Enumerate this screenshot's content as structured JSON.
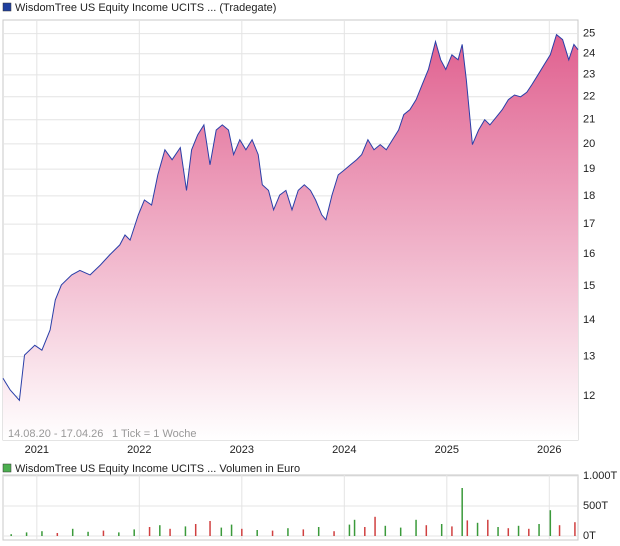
{
  "chart_data": [
    {
      "type": "area",
      "title": "WisdomTree US Equity Income UCITS ... (Tradegate)",
      "annotations": [
        "14.08.20 - 17.04.26",
        "1 Tick = 1 Woche"
      ],
      "legend_color": "#1f3f9f",
      "log_y": true,
      "grid": true,
      "xlim": [
        2020.67,
        2026.28
      ],
      "xticks": [
        2021,
        2022,
        2023,
        2024,
        2025,
        2026
      ],
      "ylim": [
        10.98,
        25.7
      ],
      "yticks": [
        12,
        13,
        14,
        15,
        16,
        17,
        18,
        19,
        20,
        21,
        22,
        23,
        24,
        25
      ],
      "series": [
        {
          "color": "#2a3fa8",
          "fill": "#e0608f",
          "x": [
            2020.67,
            2020.74,
            2020.83,
            2020.88,
            2020.98,
            2021.05,
            2021.13,
            2021.18,
            2021.24,
            2021.34,
            2021.42,
            2021.52,
            2021.62,
            2021.71,
            2021.81,
            2021.86,
            2021.91,
            2021.99,
            2022.05,
            2022.12,
            2022.18,
            2022.25,
            2022.32,
            2022.4,
            2022.46,
            2022.51,
            2022.57,
            2022.63,
            2022.69,
            2022.75,
            2022.81,
            2022.87,
            2022.92,
            2022.98,
            2023.04,
            2023.1,
            2023.16,
            2023.2,
            2023.26,
            2023.31,
            2023.37,
            2023.43,
            2023.49,
            2023.55,
            2023.61,
            2023.67,
            2023.72,
            2023.78,
            2023.82,
            2023.88,
            2023.94,
            2024.0,
            2024.06,
            2024.12,
            2024.17,
            2024.23,
            2024.29,
            2024.35,
            2024.41,
            2024.47,
            2024.53,
            2024.58,
            2024.64,
            2024.7,
            2024.76,
            2024.82,
            2024.89,
            2024.94,
            2024.99,
            2025.05,
            2025.11,
            2025.15,
            2025.19,
            2025.25,
            2025.31,
            2025.37,
            2025.42,
            2025.48,
            2025.54,
            2025.6,
            2025.66,
            2025.72,
            2025.78,
            2025.83,
            2025.89,
            2025.95,
            2026.01,
            2026.07,
            2026.13,
            2026.19,
            2026.24,
            2026.28
          ],
          "values": [
            12.44,
            12.15,
            11.9,
            13.04,
            13.3,
            13.17,
            13.72,
            14.58,
            15.03,
            15.34,
            15.48,
            15.34,
            15.65,
            15.97,
            16.3,
            16.63,
            16.46,
            17.32,
            17.85,
            17.67,
            18.78,
            19.76,
            19.37,
            19.85,
            18.2,
            19.76,
            20.37,
            20.78,
            19.17,
            20.57,
            20.78,
            20.57,
            19.57,
            20.17,
            19.76,
            20.17,
            19.57,
            18.41,
            18.2,
            17.5,
            18.03,
            18.2,
            17.5,
            18.2,
            18.41,
            18.2,
            17.85,
            17.32,
            17.15,
            18.03,
            18.78,
            18.97,
            19.17,
            19.37,
            19.57,
            20.17,
            19.76,
            19.97,
            19.76,
            20.17,
            20.57,
            21.22,
            21.43,
            21.87,
            22.55,
            23.25,
            24.6,
            23.71,
            23.25,
            23.95,
            23.71,
            24.46,
            22.78,
            19.97,
            20.57,
            21.0,
            20.78,
            21.1,
            21.43,
            21.87,
            22.08,
            22.0,
            22.2,
            22.55,
            23.0,
            23.48,
            23.95,
            24.95,
            24.7,
            23.71,
            24.46,
            24.2
          ]
        }
      ]
    },
    {
      "type": "bar",
      "title": "WisdomTree US Equity Income UCITS ... Volumen in Euro",
      "legend_color": "#4caf50",
      "grid": true,
      "xlim": [
        2020.67,
        2026.28
      ],
      "xticks": [
        2021,
        2022,
        2023,
        2024,
        2025,
        2026
      ],
      "ylim": [
        0,
        1000
      ],
      "yticks": [
        {
          "value": 0,
          "label": "0T"
        },
        {
          "value": 500,
          "label": "500T"
        },
        {
          "value": 1000,
          "label": "1.000T"
        }
      ],
      "x": [
        2020.75,
        2020.9,
        2021.05,
        2021.2,
        2021.35,
        2021.5,
        2021.65,
        2021.8,
        2021.95,
        2022.1,
        2022.2,
        2022.3,
        2022.45,
        2022.55,
        2022.69,
        2022.8,
        2022.9,
        2023.0,
        2023.15,
        2023.3,
        2023.45,
        2023.6,
        2023.75,
        2023.9,
        2024.05,
        2024.1,
        2024.2,
        2024.3,
        2024.4,
        2024.55,
        2024.7,
        2024.8,
        2024.95,
        2025.05,
        2025.15,
        2025.2,
        2025.3,
        2025.4,
        2025.5,
        2025.6,
        2025.7,
        2025.8,
        2025.9,
        2026.01,
        2026.1,
        2026.25
      ],
      "values": [
        30,
        60,
        80,
        50,
        120,
        70,
        90,
        60,
        110,
        150,
        180,
        120,
        160,
        200,
        250,
        140,
        190,
        120,
        100,
        90,
        130,
        110,
        150,
        80,
        190,
        270,
        150,
        320,
        170,
        140,
        270,
        180,
        200,
        160,
        800,
        260,
        220,
        270,
        150,
        130,
        170,
        120,
        200,
        430,
        180,
        230
      ],
      "colors": [
        "#3a9a3a",
        "#3a9a3a",
        "#3a9a3a",
        "#d04040",
        "#3a9a3a",
        "#3a9a3a",
        "#d04040",
        "#3a9a3a",
        "#3a9a3a",
        "#d04040",
        "#3a9a3a",
        "#d04040",
        "#3a9a3a",
        "#d04040",
        "#d04040",
        "#3a9a3a",
        "#3a9a3a",
        "#d04040",
        "#3a9a3a",
        "#d04040",
        "#3a9a3a",
        "#d04040",
        "#3a9a3a",
        "#d04040",
        "#3a9a3a",
        "#3a9a3a",
        "#d04040",
        "#d04040",
        "#3a9a3a",
        "#3a9a3a",
        "#3a9a3a",
        "#d04040",
        "#3a9a3a",
        "#d04040",
        "#3a9a3a",
        "#d04040",
        "#3a9a3a",
        "#d04040",
        "#3a9a3a",
        "#d04040",
        "#3a9a3a",
        "#d04040",
        "#3a9a3a",
        "#3a9a3a",
        "#d04040",
        "#d04040"
      ]
    }
  ]
}
